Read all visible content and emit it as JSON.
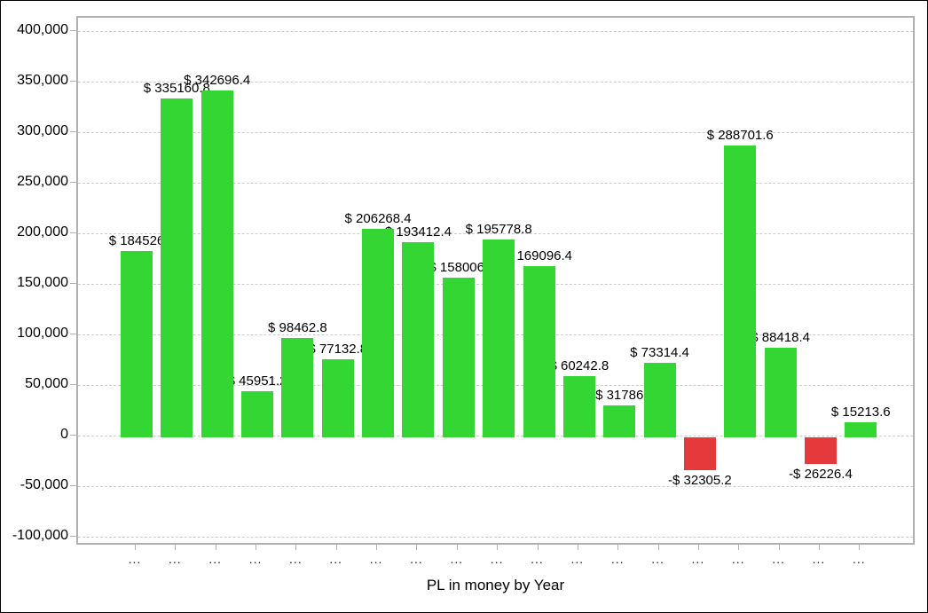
{
  "chart_data": {
    "type": "bar",
    "title": "",
    "xlabel": "PL in money by Year",
    "ylabel": "",
    "ylim": [
      -100000,
      400000
    ],
    "grid": "horizontal-dashed",
    "legend": "none",
    "categories": [
      "...",
      "...",
      "...",
      "...",
      "...",
      "...",
      "...",
      "...",
      "...",
      "...",
      "...",
      "...",
      "...",
      "...",
      "...",
      "...",
      "...",
      "...",
      "..."
    ],
    "values": [
      184526,
      335160.8,
      342696.4,
      45951.2,
      98462.8,
      77132.8,
      206268.4,
      193412.4,
      158006,
      195778.8,
      169096.4,
      60242.8,
      31786,
      73314.4,
      -32305.2,
      288701.6,
      88418.4,
      -26226.4,
      15213.6
    ],
    "bar_labels": [
      "$ 184526",
      "$ 335160.8",
      "$ 342696.4",
      "$ 45951.2",
      "$ 98462.8",
      "$ 77132.8",
      "$ 206268.4",
      "$ 193412.4",
      "$ 158006.",
      "$ 195778.8",
      "$ 169096.4",
      "$ 60242.8",
      "$ 31786",
      "$ 73314.4",
      "-$ 32305.2",
      "$ 288701.6",
      "$ 88418.4",
      "-$ 26226.4",
      "$ 15213.6"
    ],
    "y_ticks": [
      {
        "label": "400,000",
        "value": 400000
      },
      {
        "label": "350,000",
        "value": 350000
      },
      {
        "label": "300,000",
        "value": 300000
      },
      {
        "label": "250,000",
        "value": 250000
      },
      {
        "label": "200,000",
        "value": 200000
      },
      {
        "label": "150,000",
        "value": 150000
      },
      {
        "label": "100,000",
        "value": 100000
      },
      {
        "label": "50,000",
        "value": 50000
      },
      {
        "label": "0",
        "value": 0
      },
      {
        "label": "-50,000",
        "value": -50000
      },
      {
        "label": "-100,000",
        "value": -100000
      }
    ],
    "colors": {
      "positive_bar": "#33d633",
      "negative_bar": "#e6393c",
      "gridline": "#cccccc",
      "axis": "#b0b0b0",
      "label_text": "#000000"
    }
  }
}
